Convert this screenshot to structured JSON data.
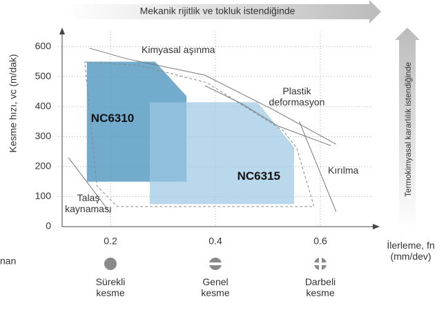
{
  "chart_data": {
    "type": "region",
    "top_banner": "Mekanik rijitlik ve tokluk istendiğinde",
    "side_banner": "Termokimyasal kararlılık istendiğinde",
    "ylabel": "Kesme hızı, vc (m/dak)",
    "xlabel": [
      "İlerleme, fn",
      "(mm/dev)"
    ],
    "side_text": "nan",
    "xlim": [
      0.1,
      0.7
    ],
    "ylim": [
      0,
      650
    ],
    "xticks": [
      0.2,
      0.4,
      0.6
    ],
    "yticks": [
      0,
      100,
      200,
      300,
      400,
      500,
      600
    ],
    "grid": true,
    "regions": [
      {
        "name": "NC6310",
        "color": "#5b9cc4",
        "opacity": 0.85,
        "points": [
          [
            0.155,
            550
          ],
          [
            0.285,
            550
          ],
          [
            0.345,
            435
          ],
          [
            0.345,
            150
          ],
          [
            0.155,
            150
          ]
        ]
      },
      {
        "name": "NC6315",
        "color": "#9cc8e4",
        "opacity": 0.7,
        "points": [
          [
            0.275,
            415
          ],
          [
            0.48,
            415
          ],
          [
            0.55,
            265
          ],
          [
            0.55,
            75
          ],
          [
            0.275,
            75
          ]
        ]
      }
    ],
    "outline": [
      [
        0.151,
        549
      ],
      [
        0.253,
        538
      ],
      [
        0.384,
        480
      ],
      [
        0.529,
        320
      ],
      [
        0.555,
        262
      ],
      [
        0.588,
        67
      ],
      [
        0.213,
        67
      ],
      [
        0.174,
        136
      ]
    ],
    "curves": [
      {
        "label": [
          "Kimyasal aşınma"
        ],
        "points": [
          [
            0.16,
            595
          ],
          [
            0.23,
            560
          ],
          [
            0.38,
            505
          ],
          [
            0.51,
            390
          ],
          [
            0.63,
            275
          ]
        ]
      },
      {
        "label": [
          "Plastik",
          "deformasyon"
        ],
        "points": [
          [
            0.38,
            470
          ],
          [
            0.45,
            410
          ],
          [
            0.52,
            335
          ],
          [
            0.62,
            270
          ]
        ]
      },
      {
        "label": [
          "Kırılma"
        ],
        "points": [
          [
            0.56,
            350
          ],
          [
            0.63,
            50
          ]
        ]
      },
      {
        "label": [
          "Talaş",
          "kaynaması"
        ],
        "points": [
          [
            0.12,
            230
          ],
          [
            0.2,
            45
          ]
        ]
      }
    ],
    "cutting_modes": [
      {
        "x": 0.2,
        "label": [
          "Sürekli",
          "kesme"
        ]
      },
      {
        "x": 0.4,
        "label": [
          "Genel",
          "kesme"
        ]
      },
      {
        "x": 0.6,
        "label": [
          "Darbeli",
          "kesme"
        ]
      }
    ]
  }
}
